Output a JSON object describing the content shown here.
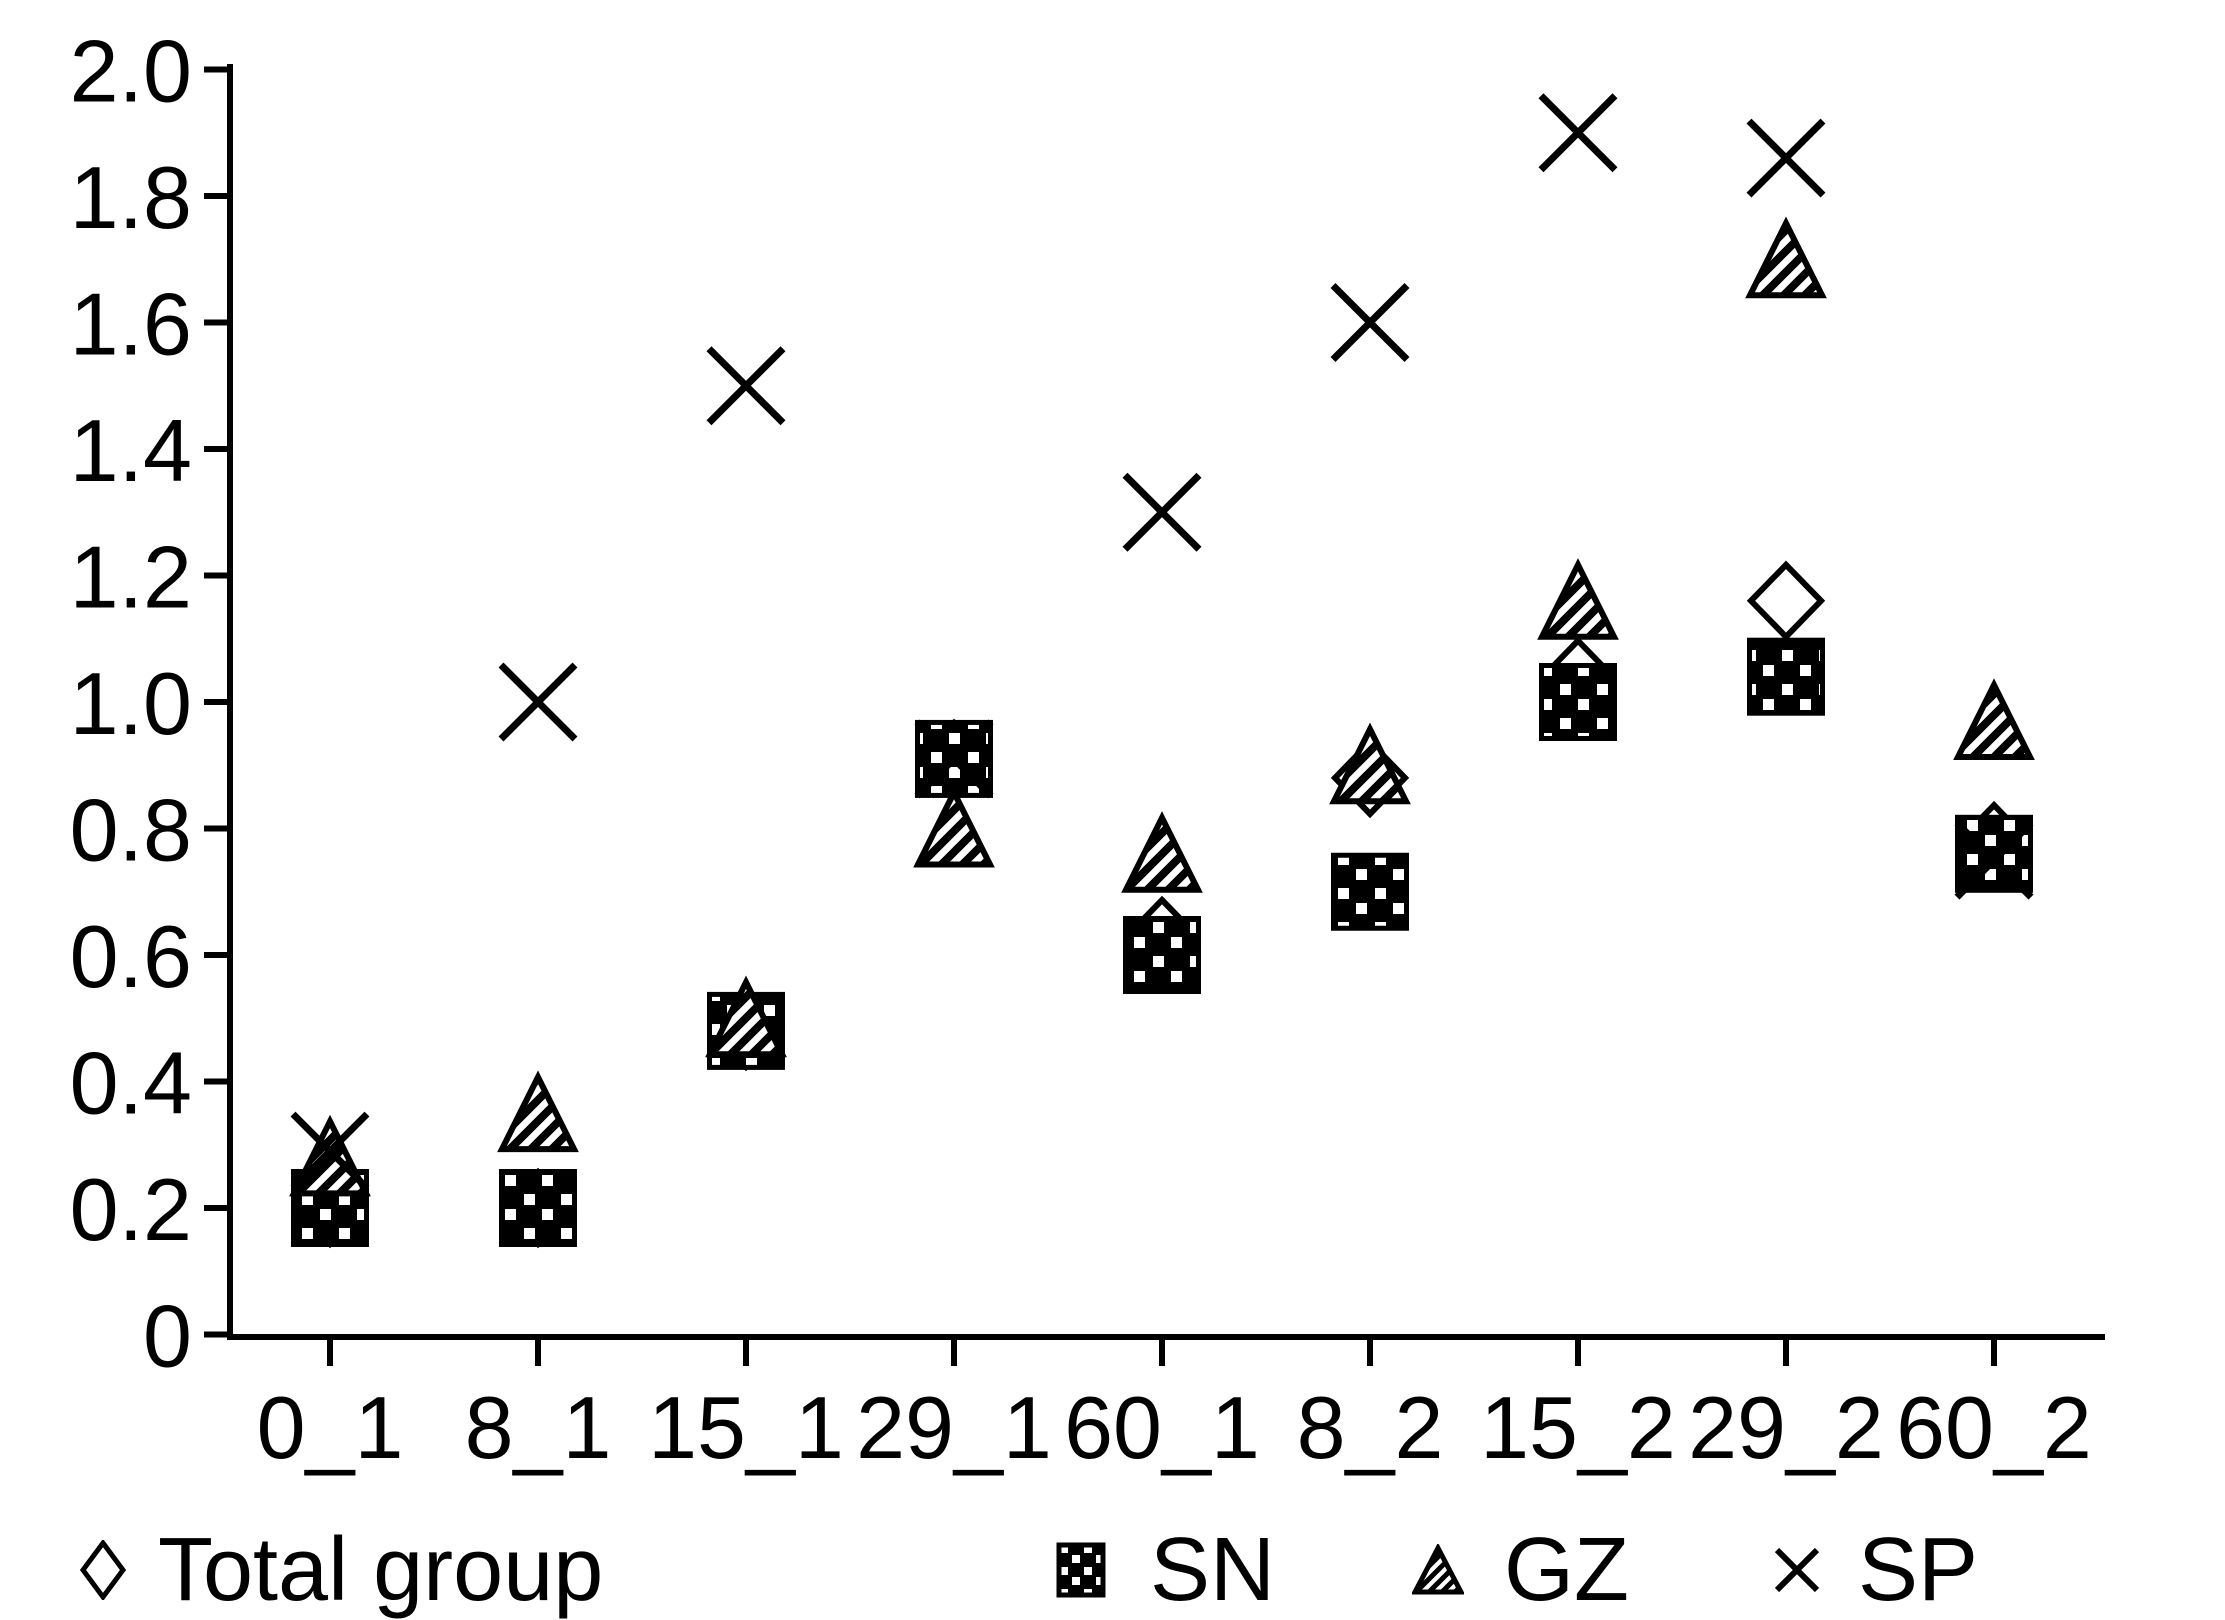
{
  "chart_data": {
    "type": "scatter",
    "title": "",
    "xlabel": "",
    "ylabel": "",
    "categories": [
      "0_1",
      "8_1",
      "15_1",
      "29_1",
      "60_1",
      "8_2",
      "15_2",
      "29_2",
      "60_2"
    ],
    "series": [
      {
        "name": "Total group",
        "marker": "open-diamond",
        "values": [
          0.2,
          0.2,
          0.48,
          0.91,
          0.63,
          0.88,
          1.04,
          1.16,
          0.78
        ]
      },
      {
        "name": "SN",
        "marker": "dotted-square",
        "values": [
          0.2,
          0.2,
          0.48,
          0.91,
          0.6,
          0.7,
          1.0,
          1.04,
          0.76
        ]
      },
      {
        "name": "GZ",
        "marker": "hatched-triangle",
        "values": [
          0.28,
          0.35,
          0.5,
          0.8,
          0.76,
          0.9,
          1.16,
          1.7,
          0.97
        ]
      },
      {
        "name": "SP",
        "marker": "x-cross",
        "values": [
          0.29,
          1.0,
          1.5,
          0.91,
          1.3,
          1.6,
          1.9,
          1.86,
          0.75
        ]
      }
    ],
    "ylim": [
      0,
      2.0
    ],
    "ytick_step": 0.2,
    "ytick_labels": [
      "0",
      "0.2",
      "0.4",
      "0.6",
      "0.8",
      "1.0",
      "1.2",
      "1.4",
      "1.6",
      "1.8",
      "2.0"
    ],
    "grid": false,
    "legend_position": "bottom",
    "marker_color": "#000000",
    "background_color": "#ffffff"
  },
  "legend": {
    "items": [
      {
        "label": "Total group",
        "marker": "open-diamond"
      },
      {
        "label": "SN",
        "marker": "dotted-square"
      },
      {
        "label": "GZ",
        "marker": "hatched-triangle"
      },
      {
        "label": "SP",
        "marker": "x-cross"
      }
    ]
  }
}
